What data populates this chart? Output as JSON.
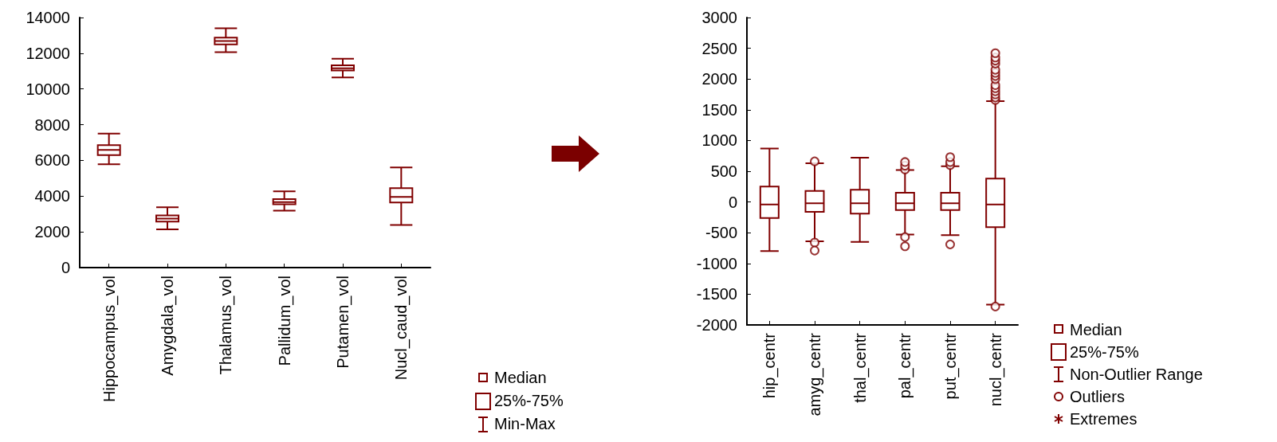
{
  "chart_data": [
    {
      "type": "box",
      "categories": [
        "Hippocampus_vol",
        "Amygdala_vol",
        "Thalamus_vol",
        "Pallidum_vol",
        "Putamen_vol",
        "Nucl_caud_vol"
      ],
      "color": "#800000",
      "boxes": [
        {
          "low": 5790,
          "q1": 6300,
          "median": 6590,
          "q3": 6860,
          "high": 7500
        },
        {
          "low": 2140,
          "q1": 2580,
          "median": 2740,
          "q3": 2920,
          "high": 3380
        },
        {
          "low": 12060,
          "q1": 12490,
          "median": 12680,
          "q3": 12870,
          "high": 13400
        },
        {
          "low": 3190,
          "q1": 3540,
          "median": 3670,
          "q3": 3830,
          "high": 4270
        },
        {
          "low": 10640,
          "q1": 11040,
          "median": 11160,
          "q3": 11320,
          "high": 11690
        },
        {
          "low": 2390,
          "q1": 3640,
          "median": 3960,
          "q3": 4450,
          "high": 5610
        }
      ],
      "ylim": [
        0,
        14000
      ],
      "yticks": [
        0,
        2000,
        4000,
        6000,
        8000,
        10000,
        12000,
        14000
      ],
      "grid": false,
      "annotations": [
        "Median",
        "25%-75%",
        "Min-Max"
      ]
    },
    {
      "type": "box",
      "categories": [
        "hip_centr",
        "amyg_centr",
        "thal_centr",
        "pal_centr",
        "put_centr",
        "nucl_centr"
      ],
      "color": "#800000",
      "boxes": [
        {
          "low": -800,
          "q1": -260,
          "median": -40,
          "q3": 250,
          "high": 870
        },
        {
          "low": -640,
          "q1": -160,
          "median": -20,
          "q3": 180,
          "high": 630,
          "outliers": [
            660,
            -660,
            -790
          ]
        },
        {
          "low": -650,
          "q1": -190,
          "median": -20,
          "q3": 200,
          "high": 720
        },
        {
          "low": -530,
          "q1": -130,
          "median": -20,
          "q3": 150,
          "high": 520,
          "outliers": [
            530,
            590,
            650,
            -570,
            -720
          ]
        },
        {
          "low": -540,
          "q1": -130,
          "median": -20,
          "q3": 150,
          "high": 580,
          "outliers": [
            600,
            650,
            730,
            -690
          ]
        },
        {
          "low": -1670,
          "q1": -410,
          "median": -40,
          "q3": 380,
          "high": 1640,
          "outliers": [
            1660,
            1700,
            1750,
            1800,
            1850,
            1900,
            2000,
            2050,
            2100,
            2150,
            2250,
            2300,
            2350,
            2420,
            -1700
          ]
        }
      ],
      "ylim": [
        -2000,
        3000
      ],
      "yticks": [
        -2000,
        -1500,
        -1000,
        -500,
        0,
        500,
        1000,
        1500,
        2000,
        2500,
        3000
      ],
      "grid": false,
      "annotations": [
        "Median",
        "25%-75%",
        "Non-Outlier Range",
        "Outliers",
        "Extremes"
      ]
    }
  ]
}
